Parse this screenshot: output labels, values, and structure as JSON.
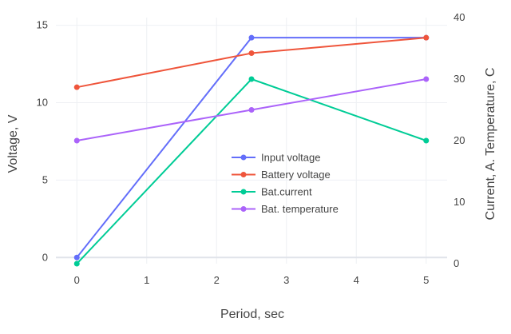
{
  "chart_data": {
    "type": "line",
    "title": "",
    "xlabel": "Period, sec",
    "ylabel_left": "Voltage, V",
    "ylabel_right": "Current, A. Temperature, C",
    "x_ticks": [
      "0",
      "1",
      "2",
      "3",
      "4",
      "5"
    ],
    "y_left_ticks": [
      "0",
      "5",
      "10",
      "15"
    ],
    "y_right_ticks": [
      "0",
      "10",
      "20",
      "30",
      "40"
    ],
    "xlim": [
      -0.3,
      5.3
    ],
    "ylim_left": [
      -0.4,
      15.5
    ],
    "ylim_right": [
      0,
      40
    ],
    "grid": true,
    "legend_position": "center",
    "series": [
      {
        "name": "Input voltage",
        "axis": "left",
        "color": "#636efa",
        "x": [
          0,
          2.5,
          5
        ],
        "y": [
          0,
          14.2,
          14.2
        ]
      },
      {
        "name": "Battery voltage",
        "axis": "left",
        "color": "#ef553b",
        "x": [
          0,
          2.5,
          5
        ],
        "y": [
          11,
          13.2,
          14.2
        ]
      },
      {
        "name": "Bat.current",
        "axis": "right",
        "color": "#00cc96",
        "x": [
          0,
          2.5,
          5
        ],
        "y": [
          0,
          30,
          20
        ]
      },
      {
        "name": "Bat. temperature",
        "axis": "right",
        "color": "#ab63fa",
        "x": [
          0,
          2.5,
          5
        ],
        "y": [
          20,
          25,
          30
        ]
      }
    ]
  }
}
